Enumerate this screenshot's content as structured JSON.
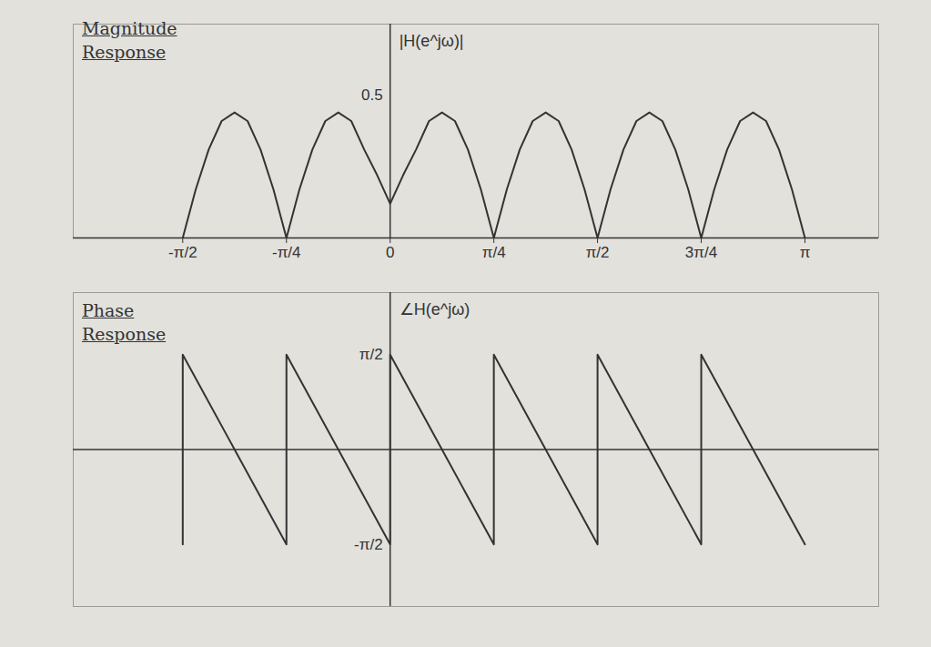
{
  "chart_data": [
    {
      "type": "line",
      "title": "Magnitude Response",
      "ylabel": "|H(e^jω)|",
      "x": [
        -1.5708,
        -1.4726,
        -1.3744,
        -1.2763,
        -1.1781,
        -1.0799,
        -0.9817,
        -0.8836,
        -0.7854,
        -0.6872,
        -0.589,
        -0.4909,
        -0.3927,
        -0.2945,
        -0.1963,
        -0.0982,
        0,
        0.0982,
        0.1963,
        0.2945,
        0.3927,
        0.4909,
        0.589,
        0.6872,
        0.7854,
        0.8836,
        0.9817,
        1.0799,
        1.1781,
        1.2763,
        1.3744,
        1.4726,
        1.5708,
        1.669,
        1.7671,
        1.8653,
        1.9635,
        2.0617,
        2.1598,
        2.258,
        2.3562,
        2.4544,
        2.5525,
        2.6507,
        2.7489,
        2.8471,
        2.9452,
        3.0434,
        3.1416
      ],
      "values": [
        0,
        0.17,
        0.31,
        0.41,
        0.44,
        0.41,
        0.31,
        0.17,
        0,
        0.17,
        0.31,
        0.41,
        0.44,
        0.41,
        0.31,
        0.22,
        0.12,
        0.22,
        0.31,
        0.41,
        0.44,
        0.41,
        0.31,
        0.17,
        0,
        0.17,
        0.31,
        0.41,
        0.44,
        0.41,
        0.31,
        0.17,
        0,
        0.17,
        0.31,
        0.41,
        0.44,
        0.41,
        0.31,
        0.17,
        0,
        0.17,
        0.31,
        0.41,
        0.44,
        0.41,
        0.31,
        0.17,
        0
      ],
      "color": "#333333",
      "xlim": [
        -2.4,
        3.7
      ],
      "xticks": [
        {
          "value": -1.5708,
          "label": "-π/2"
        },
        {
          "value": -0.7854,
          "label": "-π/4"
        },
        0,
        {
          "value": 0.7854,
          "label": "π/4"
        },
        {
          "value": 1.5708,
          "label": "π/2"
        },
        {
          "value": 2.3562,
          "label": "3π/4"
        },
        {
          "value": 3.1416,
          "label": "π"
        }
      ],
      "ylim": [
        0,
        0.75
      ],
      "yticks": [
        0.5
      ],
      "grid": false
    },
    {
      "type": "line",
      "title": "Phase Response",
      "ylabel": "∠H(e^jω)",
      "x": [
        -1.5708,
        -1.5708,
        -0.7854,
        -0.7854,
        0,
        0,
        0.7854,
        0.7854,
        1.5708,
        1.5708,
        2.3562,
        2.3562,
        3.1416
      ],
      "values": [
        -1.5708,
        1.5708,
        -1.5708,
        1.5708,
        -1.5708,
        1.5708,
        -1.5708,
        1.5708,
        -1.5708,
        1.5708,
        -1.5708,
        1.5708,
        -1.5708
      ],
      "color": "#333333",
      "xlim": [
        -2.4,
        3.7
      ],
      "ylim": [
        -2.6,
        2.6
      ],
      "yticks": [
        {
          "value": 1.5708,
          "label": "π/2"
        },
        {
          "value": -1.5708,
          "label": "-π/2"
        }
      ],
      "tick_labels": "y",
      "grid": false
    }
  ]
}
